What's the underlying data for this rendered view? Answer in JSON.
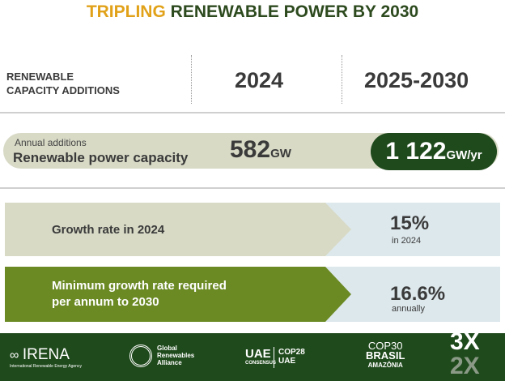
{
  "title": {
    "highlight": "TRIPLING",
    "rest": "RENEWABLE POWER BY 2030"
  },
  "header": {
    "label_line1": "RENEWABLE",
    "label_line2": "CAPACITY ADDITIONS",
    "col1": "2024",
    "col2": "2025-2030"
  },
  "capacity": {
    "small_label": "Annual additions",
    "label": "Renewable power capacity",
    "value_2024": "582",
    "unit_2024": "GW",
    "value_future": "1 122",
    "unit_future": "GW/yr"
  },
  "growth": [
    {
      "label": "Growth rate in 2024",
      "value": "15%",
      "sub": "in 2024"
    },
    {
      "label_line1": "Minimum growth rate required",
      "label_line2": "per annum to 2030",
      "value": "16.6%",
      "sub": "annually"
    }
  ],
  "footer": {
    "irena": "IRENA",
    "irena_sub": "International Renewable Energy Agency",
    "gra": [
      "Global",
      "Renewables",
      "Alliance"
    ],
    "uae": "UAE",
    "uae_sub": "CONSENSUS",
    "cop28": "COP28",
    "cop28_sub": "UAE",
    "cop30": "COP30",
    "brasil": "BRASIL",
    "amazonia": "AMAZÔNIA",
    "badge_top": "3X",
    "badge_bottom": "2X"
  },
  "colors": {
    "dark_green": "#1f4a1c",
    "gold": "#e1a21a",
    "olive": "#6b8a24",
    "pale_olive": "#d8dac6",
    "pale_blue": "#dde8ec"
  }
}
